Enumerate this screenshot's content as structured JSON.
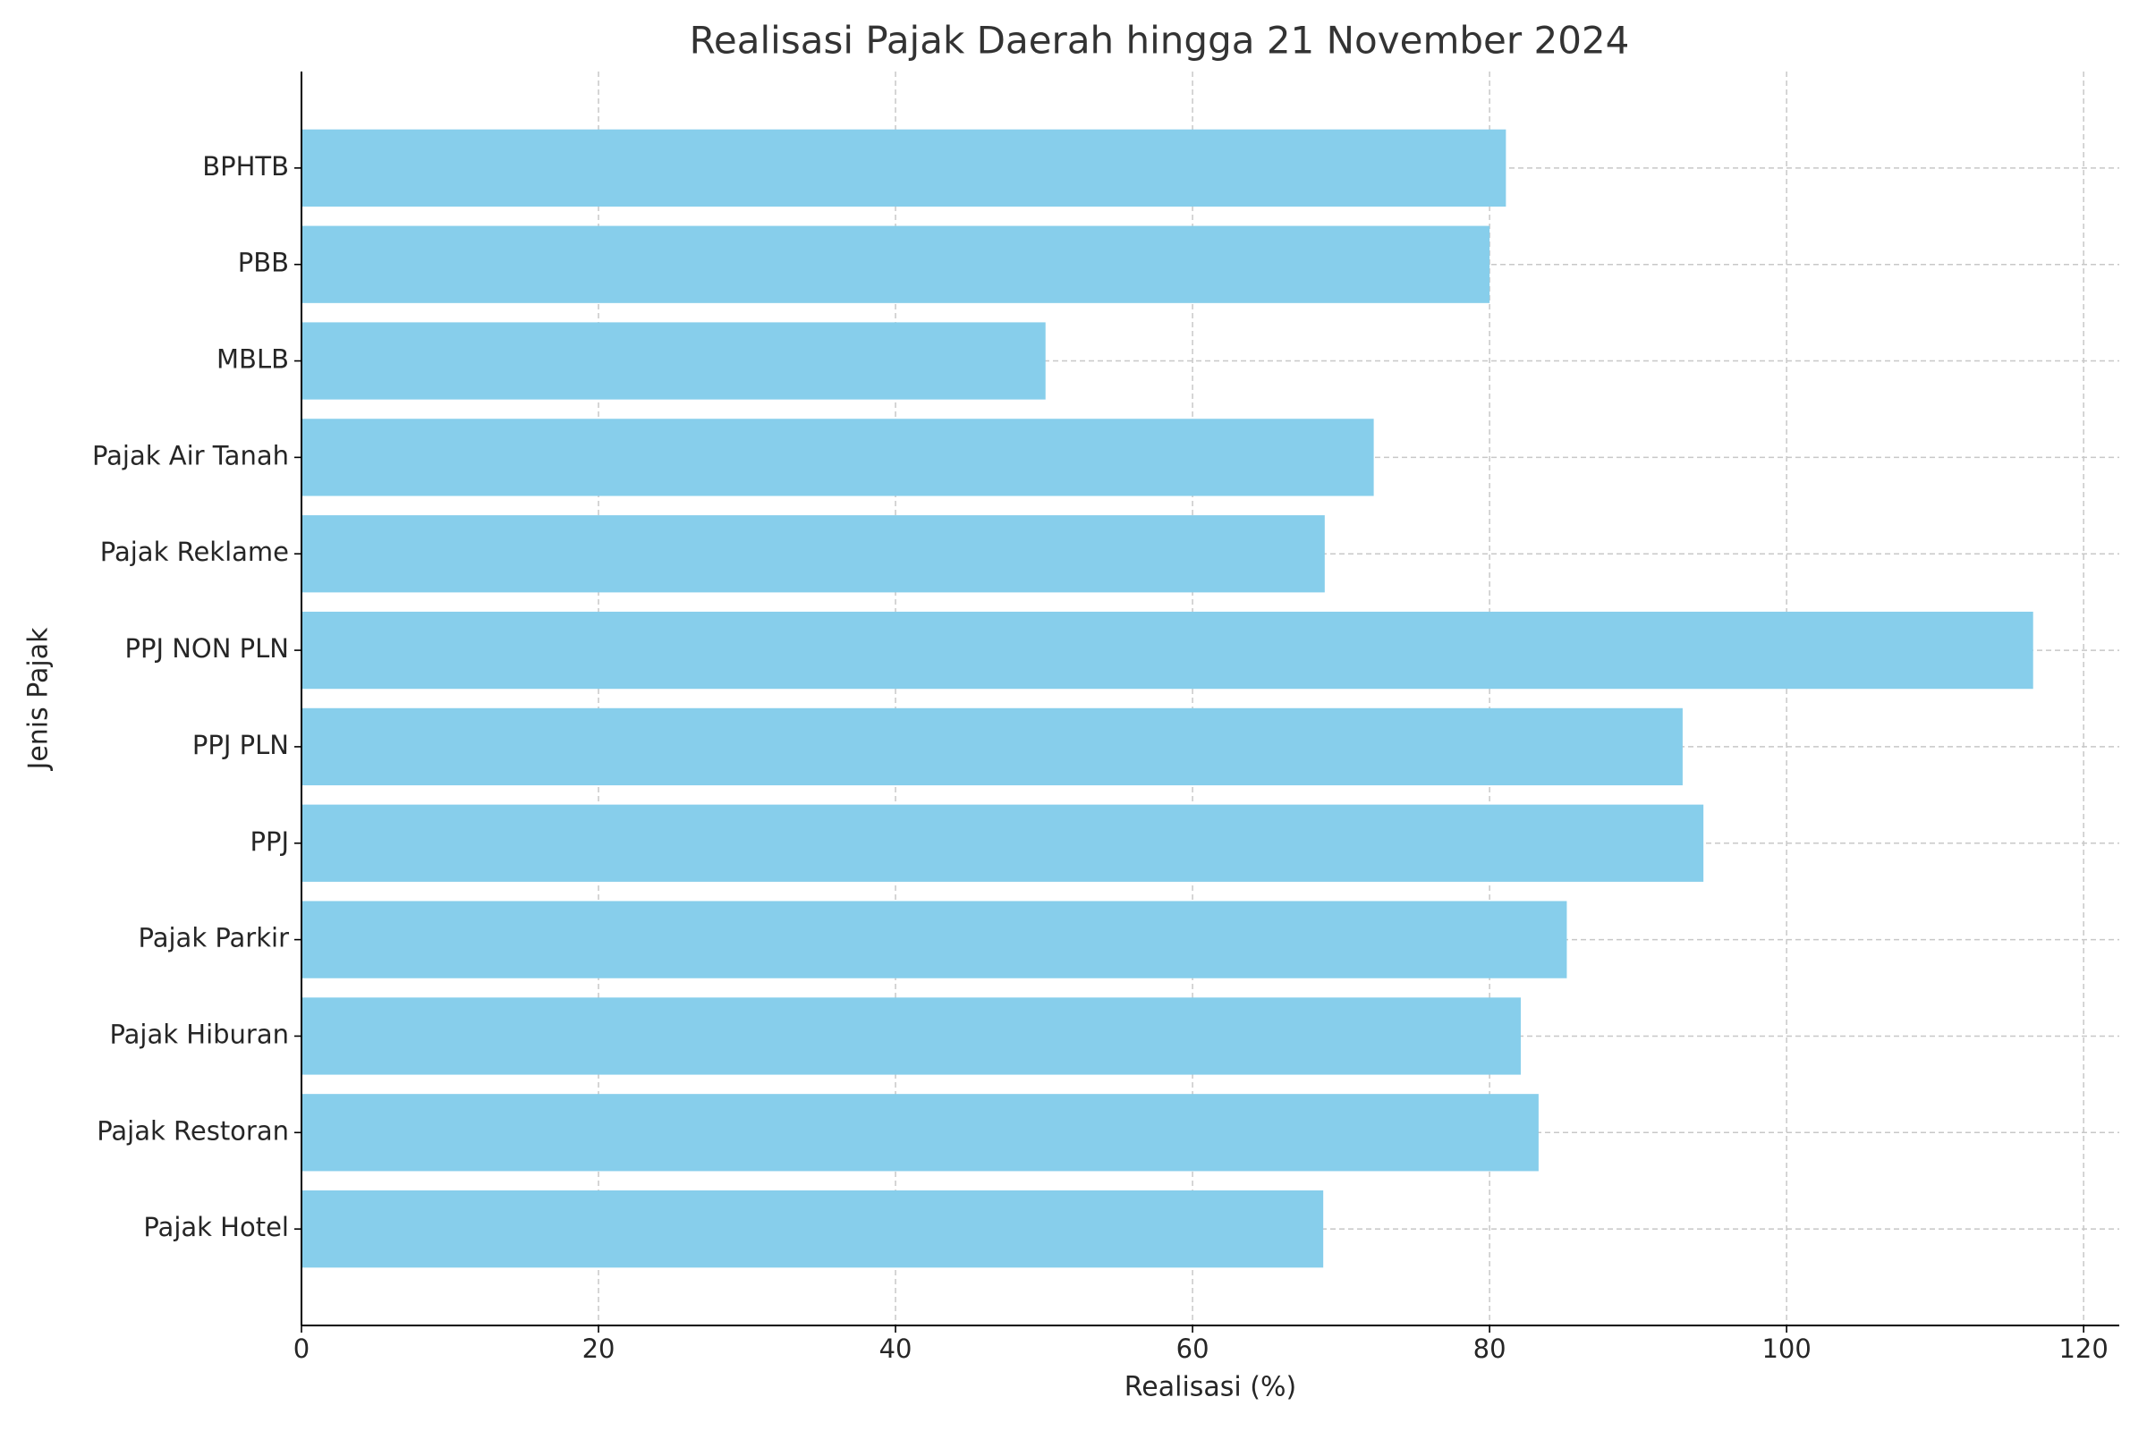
{
  "chart_data": {
    "type": "barh",
    "title": "Realisasi Pajak Daerah hingga 21 November 2024",
    "xlabel": "Realisasi (%)",
    "ylabel": "Jenis Pajak",
    "categories": [
      "Pajak Hotel",
      "Pajak Restoran",
      "Pajak Hiburan",
      "Pajak Parkir",
      "PPJ",
      "PPJ PLN",
      "PPJ NON PLN",
      "Pajak Reklame",
      "Pajak Air Tanah",
      "MBLB",
      "PBB",
      "BPHTB"
    ],
    "values": [
      68.8,
      83.3,
      82.1,
      85.2,
      94.4,
      93.0,
      116.6,
      68.9,
      72.2,
      50.1,
      80.0,
      81.1
    ],
    "color": "#87ceeb",
    "xlim": [
      0,
      122.4
    ],
    "xticks": [
      0,
      20,
      40,
      60,
      80,
      100,
      120
    ],
    "grid": true
  }
}
